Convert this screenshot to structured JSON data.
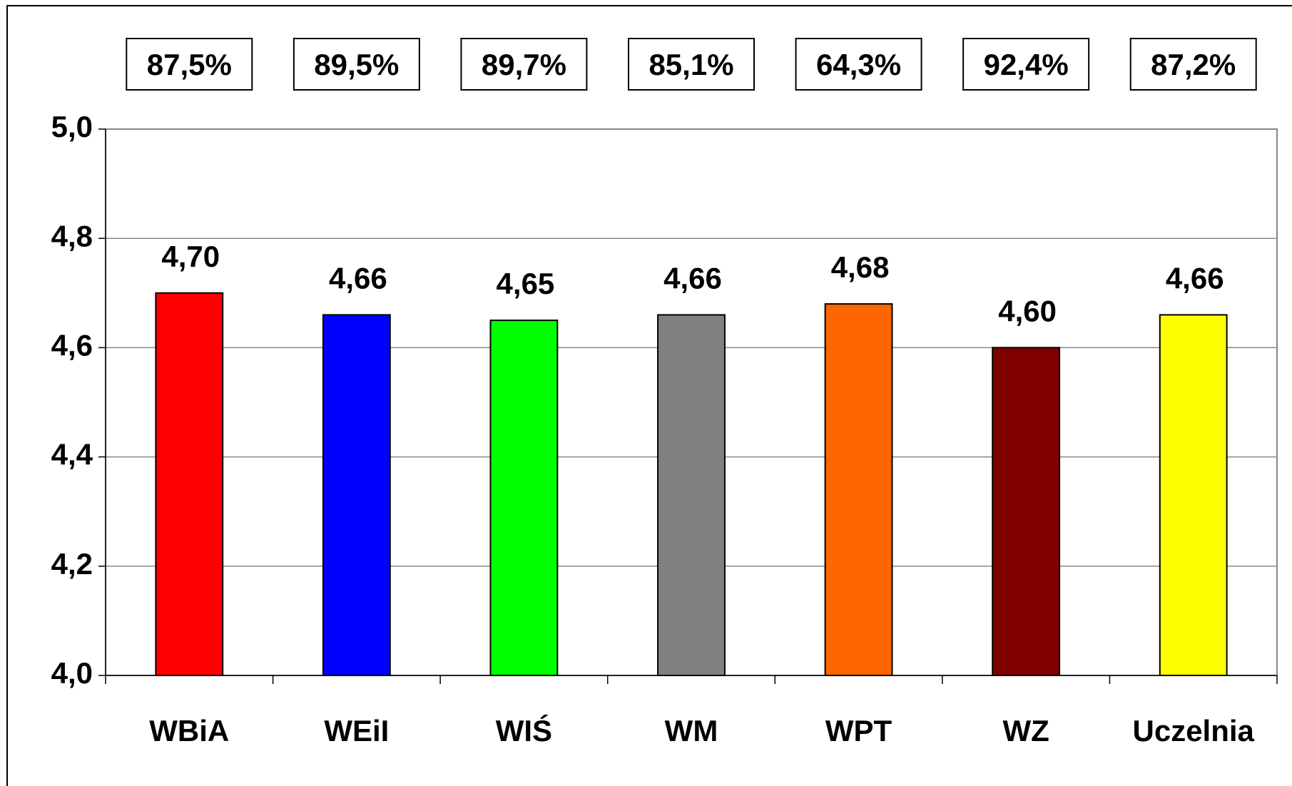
{
  "chart_data": {
    "type": "bar",
    "categories": [
      "WBiA",
      "WEiI",
      "WIŚ",
      "WM",
      "WPT",
      "WZ",
      "Uczelnia"
    ],
    "values": [
      4.7,
      4.66,
      4.65,
      4.66,
      4.68,
      4.6,
      4.66
    ],
    "value_labels": [
      "4,70",
      "4,66",
      "4,65",
      "4,66",
      "4,68",
      "4,60",
      "4,66"
    ],
    "colors": [
      "#ff0000",
      "#0000ff",
      "#00ff00",
      "#808080",
      "#ff6600",
      "#800000",
      "#ffff00"
    ],
    "annotations": [
      "87,5%",
      "89,5%",
      "89,7%",
      "85,1%",
      "64,3%",
      "92,4%",
      "87,2%"
    ],
    "ylim": [
      4.0,
      5.0
    ],
    "yticks": [
      {
        "value": 4.0,
        "label": "4,0"
      },
      {
        "value": 4.2,
        "label": "4,2"
      },
      {
        "value": 4.4,
        "label": "4,4"
      },
      {
        "value": 4.6,
        "label": "4,6"
      },
      {
        "value": 4.8,
        "label": "4,8"
      },
      {
        "value": 5.0,
        "label": "5,0"
      }
    ],
    "grid": true
  }
}
